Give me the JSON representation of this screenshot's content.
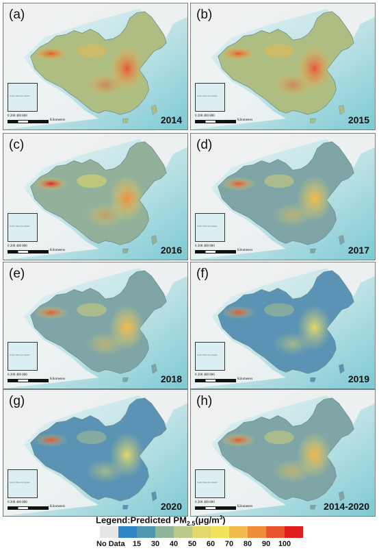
{
  "panels": [
    {
      "label": "(a)",
      "year": "2014",
      "level": "high"
    },
    {
      "label": "(b)",
      "year": "2015",
      "level": "high"
    },
    {
      "label": "(c)",
      "year": "2016",
      "level": "mid-high"
    },
    {
      "label": "(d)",
      "year": "2017",
      "level": "mid"
    },
    {
      "label": "(e)",
      "year": "2018",
      "level": "mid"
    },
    {
      "label": "(f)",
      "year": "2019",
      "level": "low"
    },
    {
      "label": "(g)",
      "year": "2020",
      "level": "low"
    },
    {
      "label": "(h)",
      "year": "2014-2020",
      "level": "mid"
    }
  ],
  "inset": {
    "text": "South China Sea Islands"
  },
  "scalebar": {
    "numbers": "0  200 400      800",
    "unit": "Kilometers"
  },
  "legend": {
    "title_prefix": "Legend:Predicted PM",
    "title_sub": "2.5",
    "title_unit_open": "(μg/m",
    "title_unit_sup": "3",
    "title_unit_close": ")",
    "nodata_label": "No Data",
    "colors": [
      "#e6e6e6",
      "#2e86c8",
      "#4f97b0",
      "#8fb69a",
      "#b9c98a",
      "#e2d86a",
      "#f3e25e",
      "#f2b94c",
      "#ef8c3a",
      "#e6552b",
      "#e01e1e"
    ],
    "ticks": [
      "15",
      "30",
      "40",
      "50",
      "60",
      "70",
      "80",
      "90",
      "100"
    ]
  }
}
